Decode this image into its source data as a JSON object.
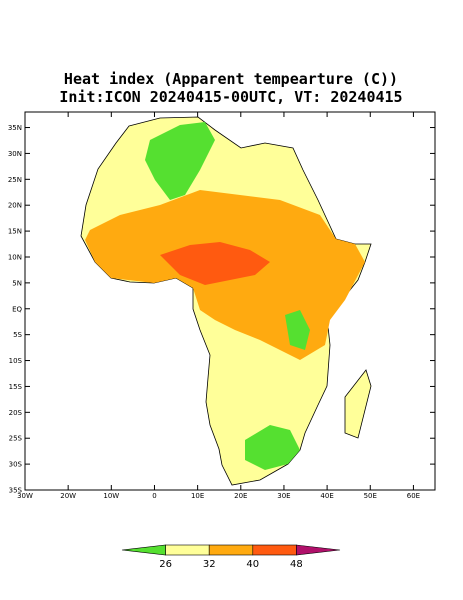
{
  "title": "Heat index (Apparent tempearture (C))",
  "subtitle": "Init:ICON 20240415-00UTC, VT: 20240415",
  "map": {
    "xlim": [
      -30,
      65
    ],
    "ylim": [
      -35,
      38
    ],
    "xticks": [
      {
        "value": -30,
        "label": "30W"
      },
      {
        "value": -20,
        "label": "20W"
      },
      {
        "value": -10,
        "label": "10W"
      },
      0,
      {
        "value": 10,
        "label": "10E"
      },
      {
        "value": 20,
        "label": "20E"
      },
      {
        "value": 30,
        "label": "30E"
      },
      {
        "value": 40,
        "label": "40E"
      },
      {
        "value": 50,
        "label": "50E"
      },
      {
        "value": 60,
        "label": "60E"
      }
    ],
    "yticks": [
      {
        "value": 35,
        "label": "35N"
      },
      {
        "value": 30,
        "label": "30N"
      },
      {
        "value": 25,
        "label": "25N"
      },
      {
        "value": 20,
        "label": "20N"
      },
      {
        "value": 15,
        "label": "15N"
      },
      {
        "value": 10,
        "label": "10N"
      },
      {
        "value": 5,
        "label": "5N"
      },
      {
        "value": 0,
        "label": "EQ"
      },
      {
        "value": -5,
        "label": "5S"
      },
      {
        "value": -10,
        "label": "10S"
      },
      {
        "value": -15,
        "label": "15S"
      },
      {
        "value": -20,
        "label": "20S"
      },
      {
        "value": -25,
        "label": "25S"
      },
      {
        "value": -30,
        "label": "30S"
      },
      {
        "value": -35,
        "label": "35S"
      }
    ]
  },
  "colorbar": {
    "colors": [
      "#55e030",
      "#ffff99",
      "#ffaa10",
      "#ff5a10",
      "#b0106a"
    ],
    "labels": [
      26,
      32,
      40,
      48
    ]
  }
}
